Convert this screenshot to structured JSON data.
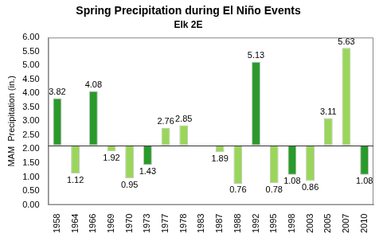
{
  "chart_data": {
    "type": "bar",
    "title": "Spring Precipitation during El Niño Events",
    "subtitle": "Elk 2E",
    "y_label": "MAM  Precipitation (in.)",
    "categories": [
      "1958",
      "1964",
      "1966",
      "1969",
      "1970",
      "1973",
      "1977",
      "1978",
      "1983",
      "1987",
      "1988",
      "1992",
      "1995",
      "1998",
      "2003",
      "2005",
      "2007",
      "2010"
    ],
    "values": [
      3.82,
      1.12,
      4.08,
      1.92,
      0.95,
      1.43,
      2.76,
      2.85,
      null,
      1.89,
      0.76,
      5.13,
      0.78,
      1.08,
      0.86,
      3.11,
      5.63,
      1.08
    ],
    "baseline": 2.13,
    "colors": [
      "#2a9a2a",
      "#9ad65a",
      "#2a9a2a",
      "#9ad65a",
      "#9ad65a",
      "#2a9a2a",
      "#9ad65a",
      "#9ad65a",
      "#9ad65a",
      "#9ad65a",
      "#9ad65a",
      "#2a9a2a",
      "#9ad65a",
      "#2a9a2a",
      "#9ad65a",
      "#9ad65a",
      "#9ad65a",
      "#2a9a2a"
    ],
    "ylim": [
      0,
      6
    ],
    "yticks": [
      {
        "value": 0,
        "label": "0.00"
      },
      {
        "value": 0.5,
        "label": "0.50"
      },
      {
        "value": 1,
        "label": "1.00"
      },
      {
        "value": 1.5,
        "label": "1.50"
      },
      {
        "value": 2,
        "label": "2.00"
      },
      {
        "value": 2.5,
        "label": "2.50"
      },
      {
        "value": 3,
        "label": "3.00"
      },
      {
        "value": 3.5,
        "label": "3.50"
      },
      {
        "value": 4,
        "label": "4.00"
      },
      {
        "value": 4.5,
        "label": "4.50"
      },
      {
        "value": 5,
        "label": "5.00"
      },
      {
        "value": 5.5,
        "label": "5.50"
      },
      {
        "value": 6,
        "label": "6.00"
      }
    ],
    "grid": false,
    "data_labels": true
  }
}
